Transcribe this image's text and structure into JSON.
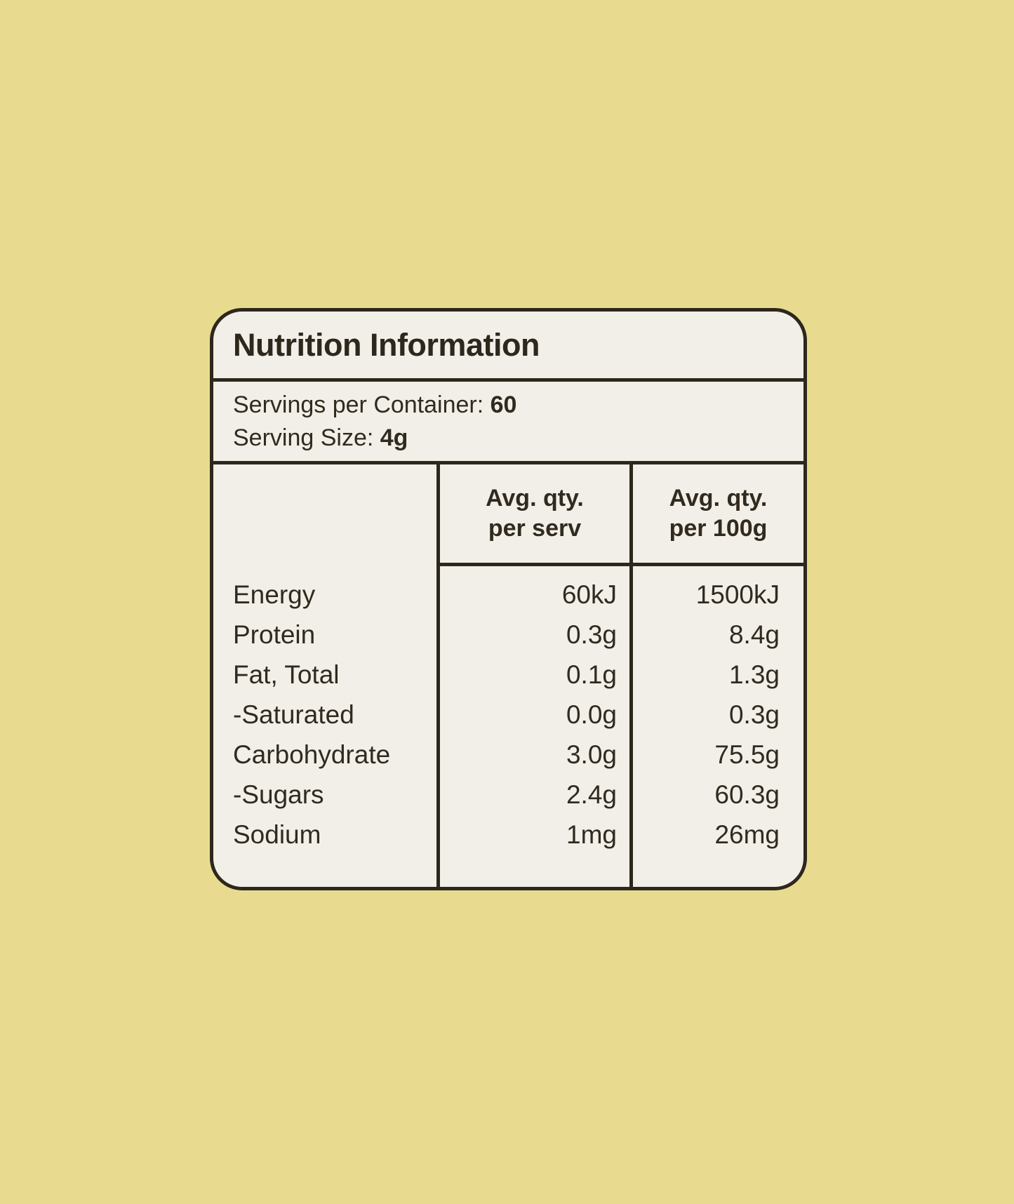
{
  "colors": {
    "background": "#e8db90",
    "card": "#f2efe9",
    "ink": "#2d271c"
  },
  "panel": {
    "title": "Nutrition Information",
    "servings_label": "Servings per Container: ",
    "servings_value": "60",
    "serving_size_label": "Serving Size: ",
    "serving_size_value": "4g",
    "col_serv": {
      "line1": "Avg. qty.",
      "line2": "per serv"
    },
    "col_100g": {
      "line1": "Avg. qty.",
      "line2": "per 100g"
    },
    "rows": [
      {
        "label": "Energy",
        "per_serv": "60kJ",
        "per_100g": "1500kJ"
      },
      {
        "label": "Protein",
        "per_serv": "0.3g",
        "per_100g": "8.4g"
      },
      {
        "label": "Fat, Total",
        "per_serv": "0.1g",
        "per_100g": "1.3g"
      },
      {
        "label": "-Saturated",
        "per_serv": "0.0g",
        "per_100g": "0.3g"
      },
      {
        "label": "Carbohydrate",
        "per_serv": "3.0g",
        "per_100g": "75.5g"
      },
      {
        "label": "-Sugars",
        "per_serv": "2.4g",
        "per_100g": "60.3g"
      },
      {
        "label": "Sodium",
        "per_serv": "1mg",
        "per_100g": "26mg"
      }
    ]
  }
}
